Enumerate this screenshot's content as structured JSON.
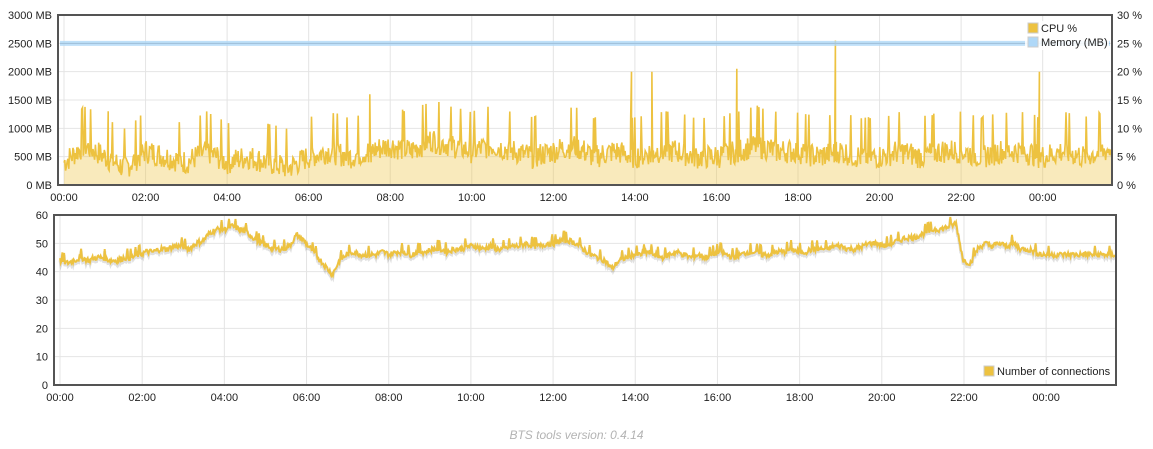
{
  "chart_data": [
    {
      "type": "line",
      "x_ticks": [
        "00:00",
        "02:00",
        "04:00",
        "06:00",
        "08:00",
        "10:00",
        "12:00",
        "14:00",
        "16:00",
        "18:00",
        "20:00",
        "22:00",
        "00:00"
      ],
      "y_left_ticks": [
        "0 MB",
        "500 MB",
        "1000 MB",
        "1500 MB",
        "2000 MB",
        "2500 MB",
        "3000 MB"
      ],
      "y_left_range": [
        0,
        3000
      ],
      "y_right_ticks": [
        "0 %",
        "5 %",
        "10 %",
        "15 %",
        "20 %",
        "25 %",
        "30 %"
      ],
      "y_right_range": [
        0,
        30
      ],
      "grid": true,
      "legend_position": "top-right",
      "series": [
        {
          "name": "CPU %",
          "axis": "right",
          "color": "#edc240",
          "style": "filled-line",
          "sample_interval_hours": 0.5,
          "values": [
            4,
            7,
            5,
            3,
            6,
            5,
            4,
            6,
            4,
            5,
            4,
            3,
            5,
            6,
            5,
            6,
            7,
            6,
            8,
            7,
            6,
            7,
            6,
            5,
            6,
            7,
            5,
            6,
            5,
            6,
            6,
            5,
            5,
            6,
            7,
            6,
            6,
            5,
            6,
            5,
            5,
            6,
            5,
            6,
            6,
            5,
            6,
            6,
            5,
            6,
            5,
            6,
            7,
            6,
            5,
            6,
            6,
            5,
            7,
            6,
            5,
            6,
            6,
            5,
            6,
            6,
            5,
            6,
            5,
            6,
            6,
            5,
            6,
            5,
            6,
            6,
            5,
            6,
            7,
            6,
            5,
            6,
            5,
            6,
            6,
            5,
            7,
            6,
            6,
            5,
            6,
            5,
            6,
            6,
            5,
            6,
            6,
            5,
            7,
            6,
            5,
            6,
            5,
            6,
            6,
            5,
            5,
            6,
            5,
            7,
            6,
            6,
            5,
            6,
            5,
            6,
            6,
            7,
            5,
            6,
            5,
            6,
            5,
            6,
            5,
            6,
            6,
            5,
            6,
            5,
            6,
            6,
            7,
            5,
            6,
            5,
            6,
            8,
            6,
            5
          ],
          "spikes": [
            {
              "x": "01:05",
              "value": 13
            },
            {
              "x": "07:30",
              "value": 16
            },
            {
              "x": "13:55",
              "value": 20
            },
            {
              "x": "14:25",
              "value": 20
            },
            {
              "x": "16:30",
              "value": 20.5
            },
            {
              "x": "18:55",
              "value": 25.5
            },
            {
              "x": "23:55",
              "value": 20
            }
          ]
        },
        {
          "name": "Memory (MB)",
          "axis": "left",
          "color": "#afd8f8",
          "style": "line",
          "values": [
            2500,
            2500
          ]
        }
      ]
    },
    {
      "type": "line",
      "x_ticks": [
        "00:00",
        "02:00",
        "04:00",
        "06:00",
        "08:00",
        "10:00",
        "12:00",
        "14:00",
        "16:00",
        "18:00",
        "20:00",
        "22:00",
        "00:00"
      ],
      "y_ticks": [
        "0",
        "10",
        "20",
        "30",
        "40",
        "50",
        "60"
      ],
      "ylim": [
        0,
        60
      ],
      "grid": true,
      "legend_position": "bottom-right",
      "series": [
        {
          "name": "Number of connections",
          "color": "#edc240",
          "style": "line",
          "sample_interval_hours": 0.5,
          "values": [
            44,
            43,
            44,
            45,
            44,
            45,
            45,
            44,
            44,
            45,
            45,
            46,
            47,
            47,
            48,
            48,
            49,
            49,
            48,
            50,
            51,
            54,
            55,
            55,
            56,
            55,
            54,
            52,
            50,
            49,
            48,
            48,
            49,
            53,
            51,
            48,
            45,
            42,
            39,
            44,
            46,
            47,
            46,
            46,
            46,
            47,
            46,
            47,
            47,
            46,
            47,
            47,
            48,
            48,
            47,
            48,
            48,
            49,
            49,
            48,
            49,
            48,
            48,
            49,
            49,
            50,
            49,
            49,
            50,
            50,
            51,
            51,
            50,
            48,
            46,
            45,
            44,
            41,
            44,
            45,
            46,
            46,
            47,
            46,
            45,
            46,
            47,
            46,
            45,
            46,
            45,
            46,
            47,
            46,
            45,
            46,
            47,
            47,
            46,
            46,
            47,
            47,
            48,
            47,
            47,
            48,
            48,
            48,
            49,
            49,
            48,
            48,
            49,
            50,
            50,
            49,
            50,
            51,
            52,
            52,
            53,
            54,
            55,
            55,
            56,
            57,
            44,
            43,
            48,
            50,
            49,
            50,
            49,
            50,
            48,
            48,
            47,
            46
          ]
        }
      ]
    }
  ],
  "footer": {
    "version_text": "BTS tools version: 0.4.14"
  }
}
